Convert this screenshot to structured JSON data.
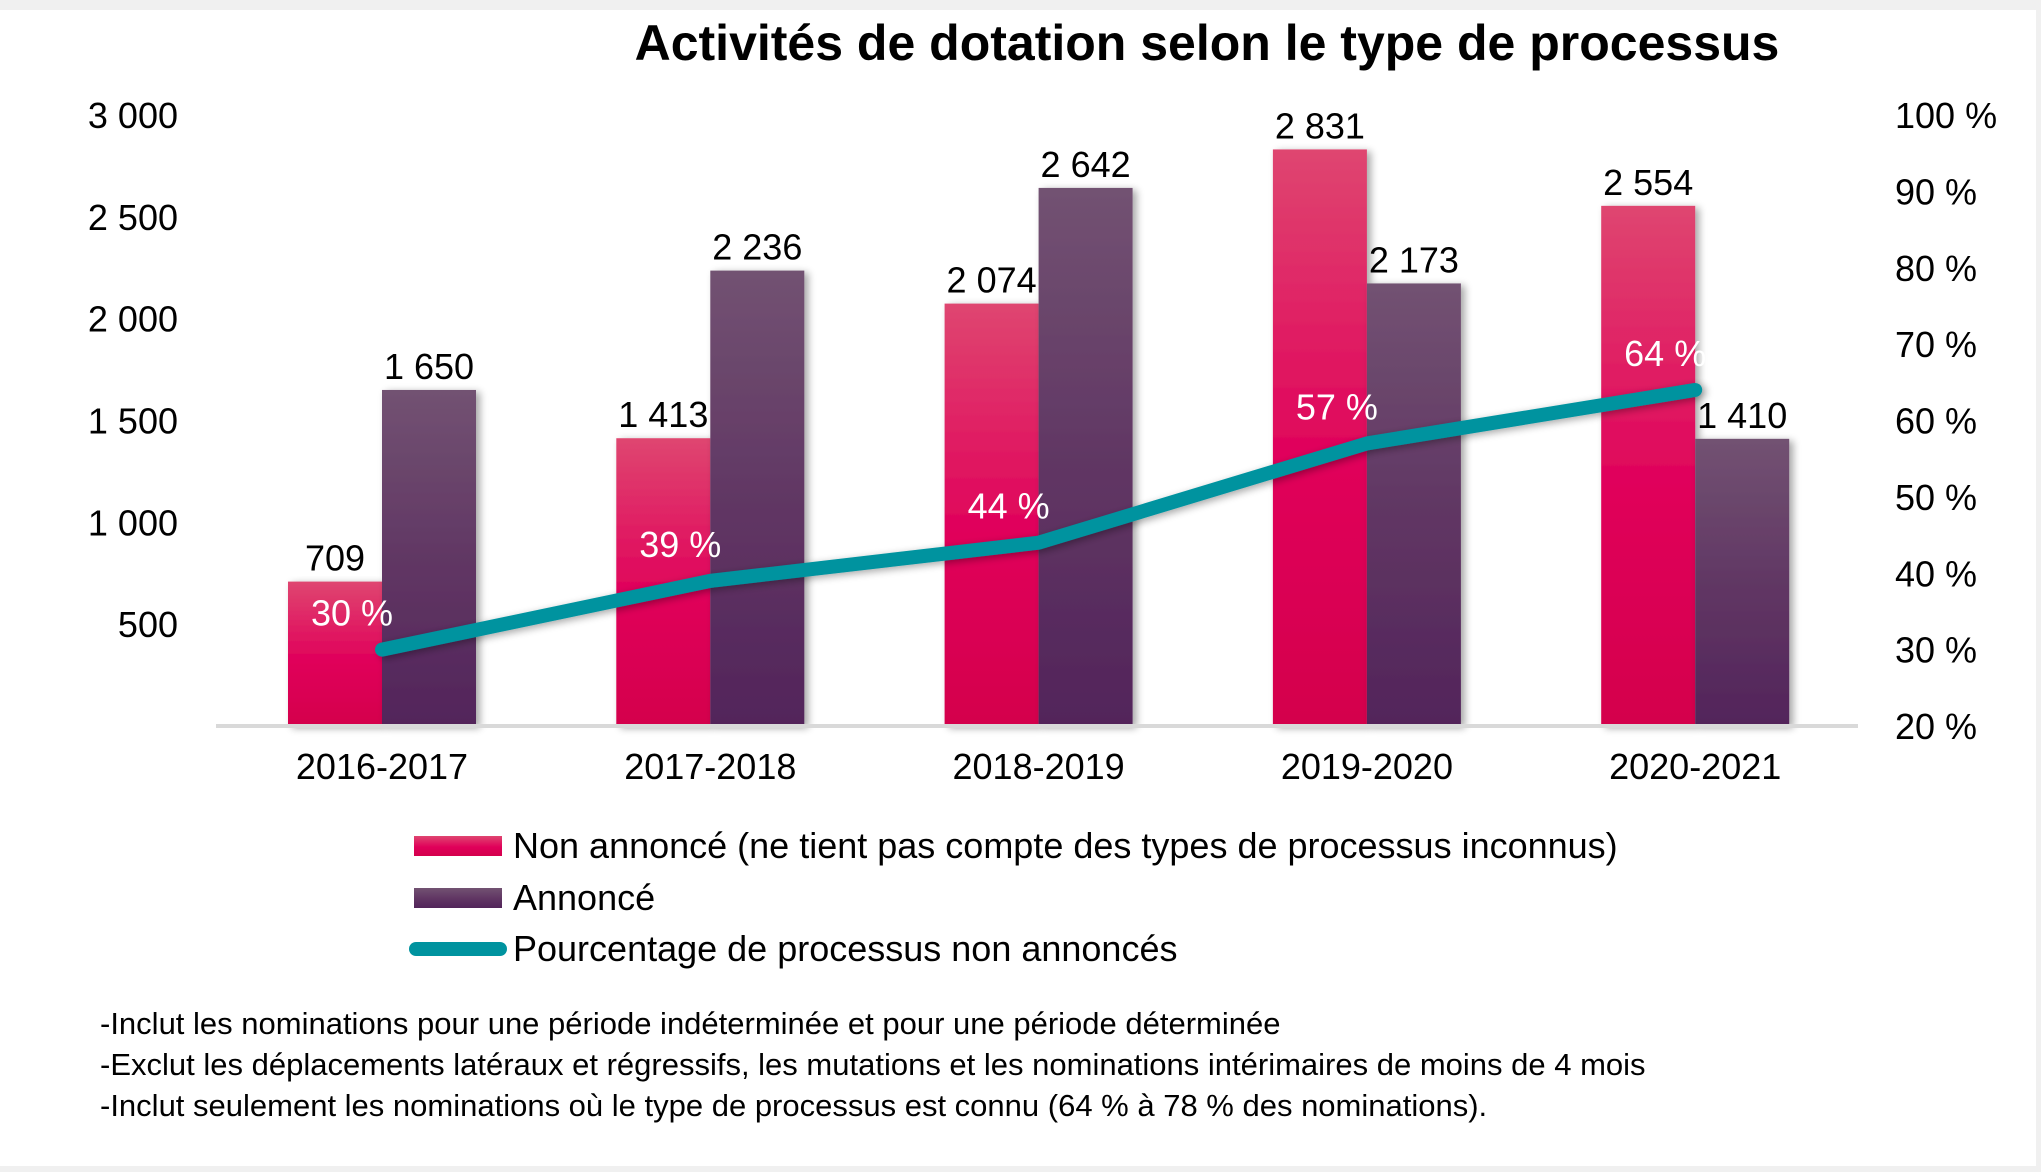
{
  "chart_data": {
    "type": "bar",
    "title": "Activités de dotation selon le type de processus",
    "categories": [
      "2016-2017",
      "2017-2018",
      "2018-2019",
      "2019-2020",
      "2020-2021"
    ],
    "series": [
      {
        "name": "Non annoncé (ne tient pas compte des types de processus inconnus)",
        "kind": "bar",
        "axis": "left",
        "color_top": "#df4670",
        "color_bottom": "#d4004c",
        "values": [
          709,
          1413,
          2074,
          2831,
          2554
        ],
        "labels": [
          "709",
          "1 413",
          "2 074",
          "2 831",
          "2 554"
        ]
      },
      {
        "name": "Annoncé",
        "kind": "bar",
        "axis": "right-group",
        "color_top": "#725272",
        "color_bottom": "#52245a",
        "values": [
          1650,
          2236,
          2642,
          2173,
          1410
        ],
        "labels": [
          "1 650",
          "2 236",
          "2 642",
          "2 173",
          "1 410"
        ]
      },
      {
        "name": "Pourcentage de processus non annoncés",
        "kind": "line",
        "axis": "secondary",
        "color": "#00939f",
        "values": [
          30,
          39,
          44,
          57,
          64
        ],
        "labels": [
          "30 %",
          "39 %",
          "44 %",
          "57 %",
          "64 %"
        ]
      }
    ],
    "y_left": {
      "ylim": [
        0,
        3000
      ],
      "ticks": [
        500,
        1000,
        1500,
        2000,
        2500,
        3000
      ],
      "tick_labels": [
        "500",
        "1 000",
        "1 500",
        "2 000",
        "2 500",
        "3 000"
      ]
    },
    "y_right": {
      "ylim": [
        20,
        100
      ],
      "ticks": [
        20,
        30,
        40,
        50,
        60,
        70,
        80,
        90,
        100
      ],
      "tick_labels": [
        "20 %",
        "30 %",
        "40 %",
        "50 %",
        "60 %",
        "70 %",
        "80 %",
        "90 %",
        "100 %"
      ]
    },
    "xlabel": "",
    "ylabel": "",
    "grid": false,
    "legend_position": "bottom"
  },
  "footnotes": [
    "-Inclut les nominations pour une période indéterminée et pour une période déterminée",
    "-Exclut les déplacements latéraux et régressifs, les mutations et les nominations intérimaires de moins de 4 mois",
    "-Inclut seulement les nominations où le type de processus est connu (64 % à 78 % des nominations)."
  ]
}
